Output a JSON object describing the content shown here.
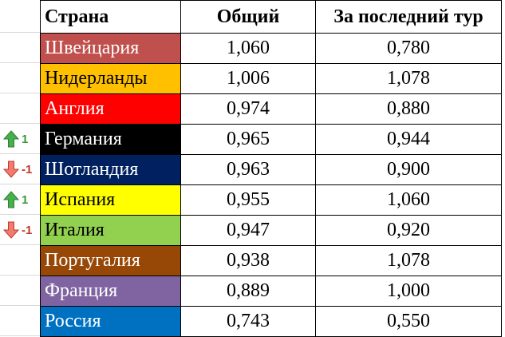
{
  "header": {
    "country": "Страна",
    "total": "Общий",
    "last_round": "За последний тур"
  },
  "rows": [
    {
      "country": "Швейцария",
      "total": "1,060",
      "last": "0,780",
      "bg": "#c0504d",
      "fg": "#ffffff"
    },
    {
      "country": "Нидерланды",
      "total": "1,006",
      "last": "1,078",
      "bg": "#ffc000",
      "fg": "#000000"
    },
    {
      "country": "Англия",
      "total": "0,974",
      "last": "0,880",
      "bg": "#ff0000",
      "fg": "#ffffff"
    },
    {
      "country": "Германия",
      "total": "0,965",
      "last": "0,944",
      "bg": "#000000",
      "fg": "#ffffff",
      "change": "1",
      "dir": "up"
    },
    {
      "country": "Шотландия",
      "total": "0,963",
      "last": "0,900",
      "bg": "#002060",
      "fg": "#ffffff",
      "change": "-1",
      "dir": "down"
    },
    {
      "country": "Испания",
      "total": "0,955",
      "last": "1,060",
      "bg": "#ffff00",
      "fg": "#000000",
      "change": "1",
      "dir": "up"
    },
    {
      "country": "Италия",
      "total": "0,947",
      "last": "0,920",
      "bg": "#92d050",
      "fg": "#000000",
      "change": "-1",
      "dir": "down"
    },
    {
      "country": "Португалия",
      "total": "0,938",
      "last": "1,078",
      "bg": "#974706",
      "fg": "#ffffff"
    },
    {
      "country": "Франция",
      "total": "0,889",
      "last": "1,000",
      "bg": "#8064a2",
      "fg": "#ffffff"
    },
    {
      "country": "Россия",
      "total": "0,743",
      "last": "0,550",
      "bg": "#0070c0",
      "fg": "#ffffff"
    }
  ],
  "colors": {
    "up": "#3b9a37",
    "down": "#c0392b"
  }
}
